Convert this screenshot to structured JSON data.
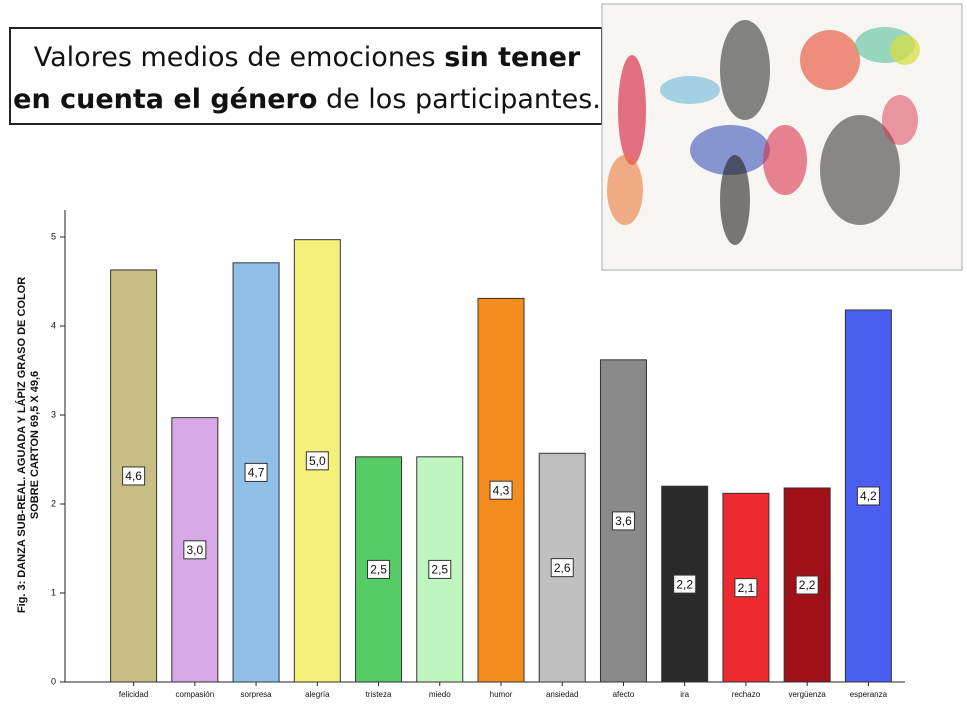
{
  "chart_data": {
    "type": "bar",
    "title": [
      [
        {
          "text": "Valores medios de emociones ",
          "bold": false
        },
        {
          "text": "sin tener",
          "bold": true
        }
      ],
      [
        {
          "text": "en cuenta el género",
          "bold": true
        },
        {
          "text": " de los participantes.",
          "bold": false
        }
      ]
    ],
    "y_label": [
      "Fig. 3: DANZA SUB-REAL. AGUADA Y LÁPIZ GRASO DE COLOR",
      "SOBRE CARTON 69,5 X 49,6"
    ],
    "categories": [
      "felicidad",
      "compasión",
      "sorpresa",
      "alegría",
      "tristeza",
      "miedo",
      "humor",
      "ansiedad",
      "afecto",
      "ira",
      "rechazo",
      "vergüenza",
      "esperanza"
    ],
    "values": [
      4.63,
      2.97,
      4.71,
      4.97,
      2.53,
      2.53,
      4.31,
      2.57,
      3.62,
      2.2,
      2.12,
      2.18,
      4.18
    ],
    "value_labels": [
      "4,6",
      "3,0",
      "4,7",
      "5,0",
      "2,5",
      "2,5",
      "4,3",
      "2,6",
      "3,6",
      "2,2",
      "2,1",
      "2,2",
      "4,2"
    ],
    "colors": [
      "#c8bd85",
      "#d6a8e8",
      "#8ec0e8",
      "#f5f07a",
      "#55cc66",
      "#bff5bf",
      "#f58c1e",
      "#c0c0c0",
      "#8a8a8a",
      "#2a2a2a",
      "#ee2a30",
      "#a01018",
      "#4a5ef0"
    ],
    "ylim": [
      0,
      5
    ],
    "yticks": [
      0,
      1,
      2,
      3,
      4,
      5
    ]
  }
}
